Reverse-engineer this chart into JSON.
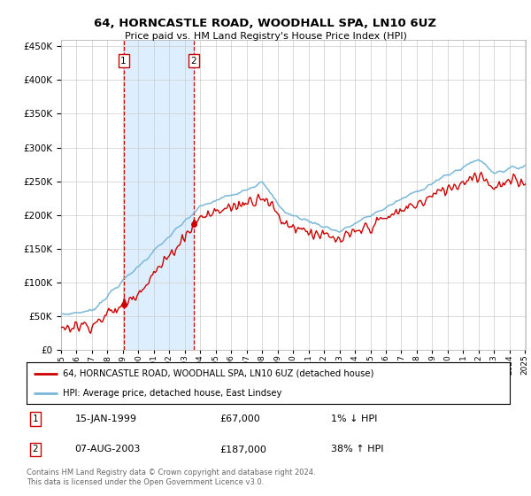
{
  "title": "64, HORNCASTLE ROAD, WOODHALL SPA, LN10 6UZ",
  "subtitle": "Price paid vs. HM Land Registry's House Price Index (HPI)",
  "legend_line1": "64, HORNCASTLE ROAD, WOODHALL SPA, LN10 6UZ (detached house)",
  "legend_line2": "HPI: Average price, detached house, East Lindsey",
  "transaction1_date": "15-JAN-1999",
  "transaction1_price": 67000,
  "transaction1_info": "1% ↓ HPI",
  "transaction2_date": "07-AUG-2003",
  "transaction2_price": 187000,
  "transaction2_info": "38% ↑ HPI",
  "footnote": "Contains HM Land Registry data © Crown copyright and database right 2024.\nThis data is licensed under the Open Government Licence v3.0.",
  "hpi_line_color": "#7ab8d9",
  "property_line_color": "#cc0000",
  "marker_color": "#cc0000",
  "vline_color": "#cc0000",
  "shade_color": "#ddeeff",
  "background_color": "#ffffff",
  "grid_color": "#cccccc",
  "ylim_max": 460000,
  "ylim_min": 0,
  "t1_year": 1999.04,
  "t2_year": 2003.58
}
